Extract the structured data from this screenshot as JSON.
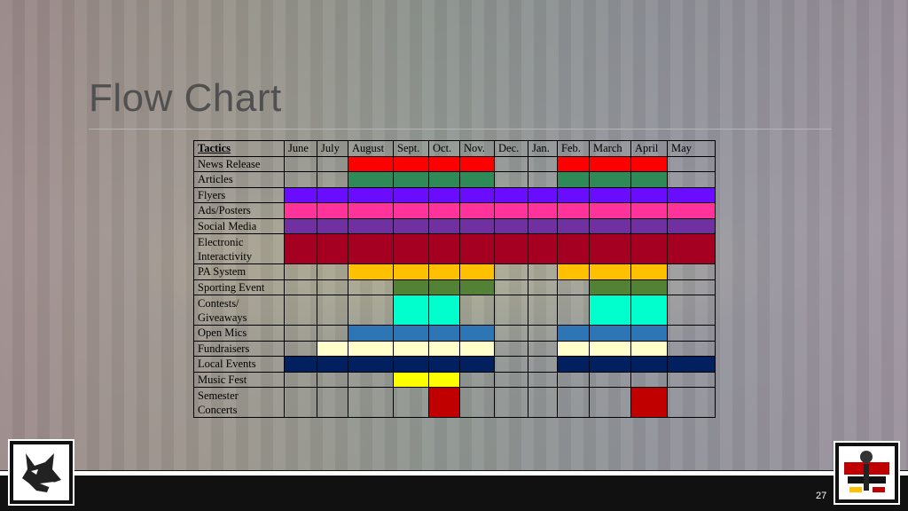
{
  "slide": {
    "title": "Flow Chart",
    "slide_number": "27"
  },
  "table": {
    "corner": "Tactics",
    "months": [
      "June",
      "July",
      "August",
      "Sept.",
      "Oct.",
      "Nov.",
      "Dec.",
      "Jan.",
      "Feb.",
      "March",
      "April",
      "May"
    ],
    "rows": [
      {
        "label": "News Release",
        "color": "#ff0000",
        "active": [
          0,
          0,
          1,
          1,
          1,
          1,
          0,
          0,
          1,
          1,
          1,
          0
        ]
      },
      {
        "label": "Articles",
        "color": "#2e8b57",
        "active": [
          0,
          0,
          1,
          1,
          1,
          1,
          0,
          0,
          1,
          1,
          1,
          0
        ]
      },
      {
        "label": "Flyers",
        "color": "#6a0dff",
        "active": [
          1,
          1,
          1,
          1,
          1,
          1,
          1,
          1,
          1,
          1,
          1,
          1
        ]
      },
      {
        "label": "Ads/Posters",
        "color": "#ff3399",
        "active": [
          1,
          1,
          1,
          1,
          1,
          1,
          1,
          1,
          1,
          1,
          1,
          1
        ]
      },
      {
        "label": "Social Media",
        "color": "#7030a0",
        "active": [
          1,
          1,
          1,
          1,
          1,
          1,
          1,
          1,
          1,
          1,
          1,
          1
        ]
      },
      {
        "label": "Electronic Interactivity",
        "color": "#a50021",
        "active": [
          1,
          1,
          1,
          1,
          1,
          1,
          1,
          1,
          1,
          1,
          1,
          1
        ],
        "tall": true
      },
      {
        "label": "PA System",
        "color": "#ffc000",
        "active": [
          0,
          0,
          1,
          1,
          1,
          1,
          0,
          0,
          1,
          1,
          1,
          0
        ]
      },
      {
        "label": "Sporting Event",
        "color": "#538135",
        "active": [
          0,
          0,
          0,
          1,
          1,
          1,
          0,
          0,
          0,
          1,
          1,
          0
        ]
      },
      {
        "label": "Contests/ Giveaways",
        "color": "#00ffcc",
        "active": [
          0,
          0,
          0,
          1,
          1,
          0,
          0,
          0,
          0,
          1,
          1,
          0
        ],
        "tall": true
      },
      {
        "label": "Open Mics",
        "color": "#2e75b6",
        "active": [
          0,
          0,
          1,
          1,
          1,
          1,
          0,
          0,
          1,
          1,
          1,
          0
        ]
      },
      {
        "label": "Fundraisers",
        "color": "#ffffcc",
        "active": [
          0,
          1,
          1,
          1,
          1,
          1,
          0,
          0,
          1,
          1,
          1,
          0
        ]
      },
      {
        "label": "Local Events",
        "color": "#002060",
        "active": [
          1,
          1,
          1,
          1,
          1,
          1,
          0,
          0,
          1,
          1,
          1,
          1
        ]
      },
      {
        "label": "Music Fest",
        "color": "#ffff00",
        "active": [
          0,
          0,
          0,
          1,
          1,
          0,
          0,
          0,
          0,
          0,
          0,
          0
        ]
      },
      {
        "label": "Semester Concerts",
        "color": "#c00000",
        "active": [
          0,
          0,
          0,
          0,
          1,
          0,
          0,
          0,
          0,
          0,
          1,
          0
        ],
        "tall": true
      }
    ]
  },
  "logos": {
    "left_icon": "wolf-logo-icon",
    "right_icon": "radio-station-logo-icon"
  }
}
